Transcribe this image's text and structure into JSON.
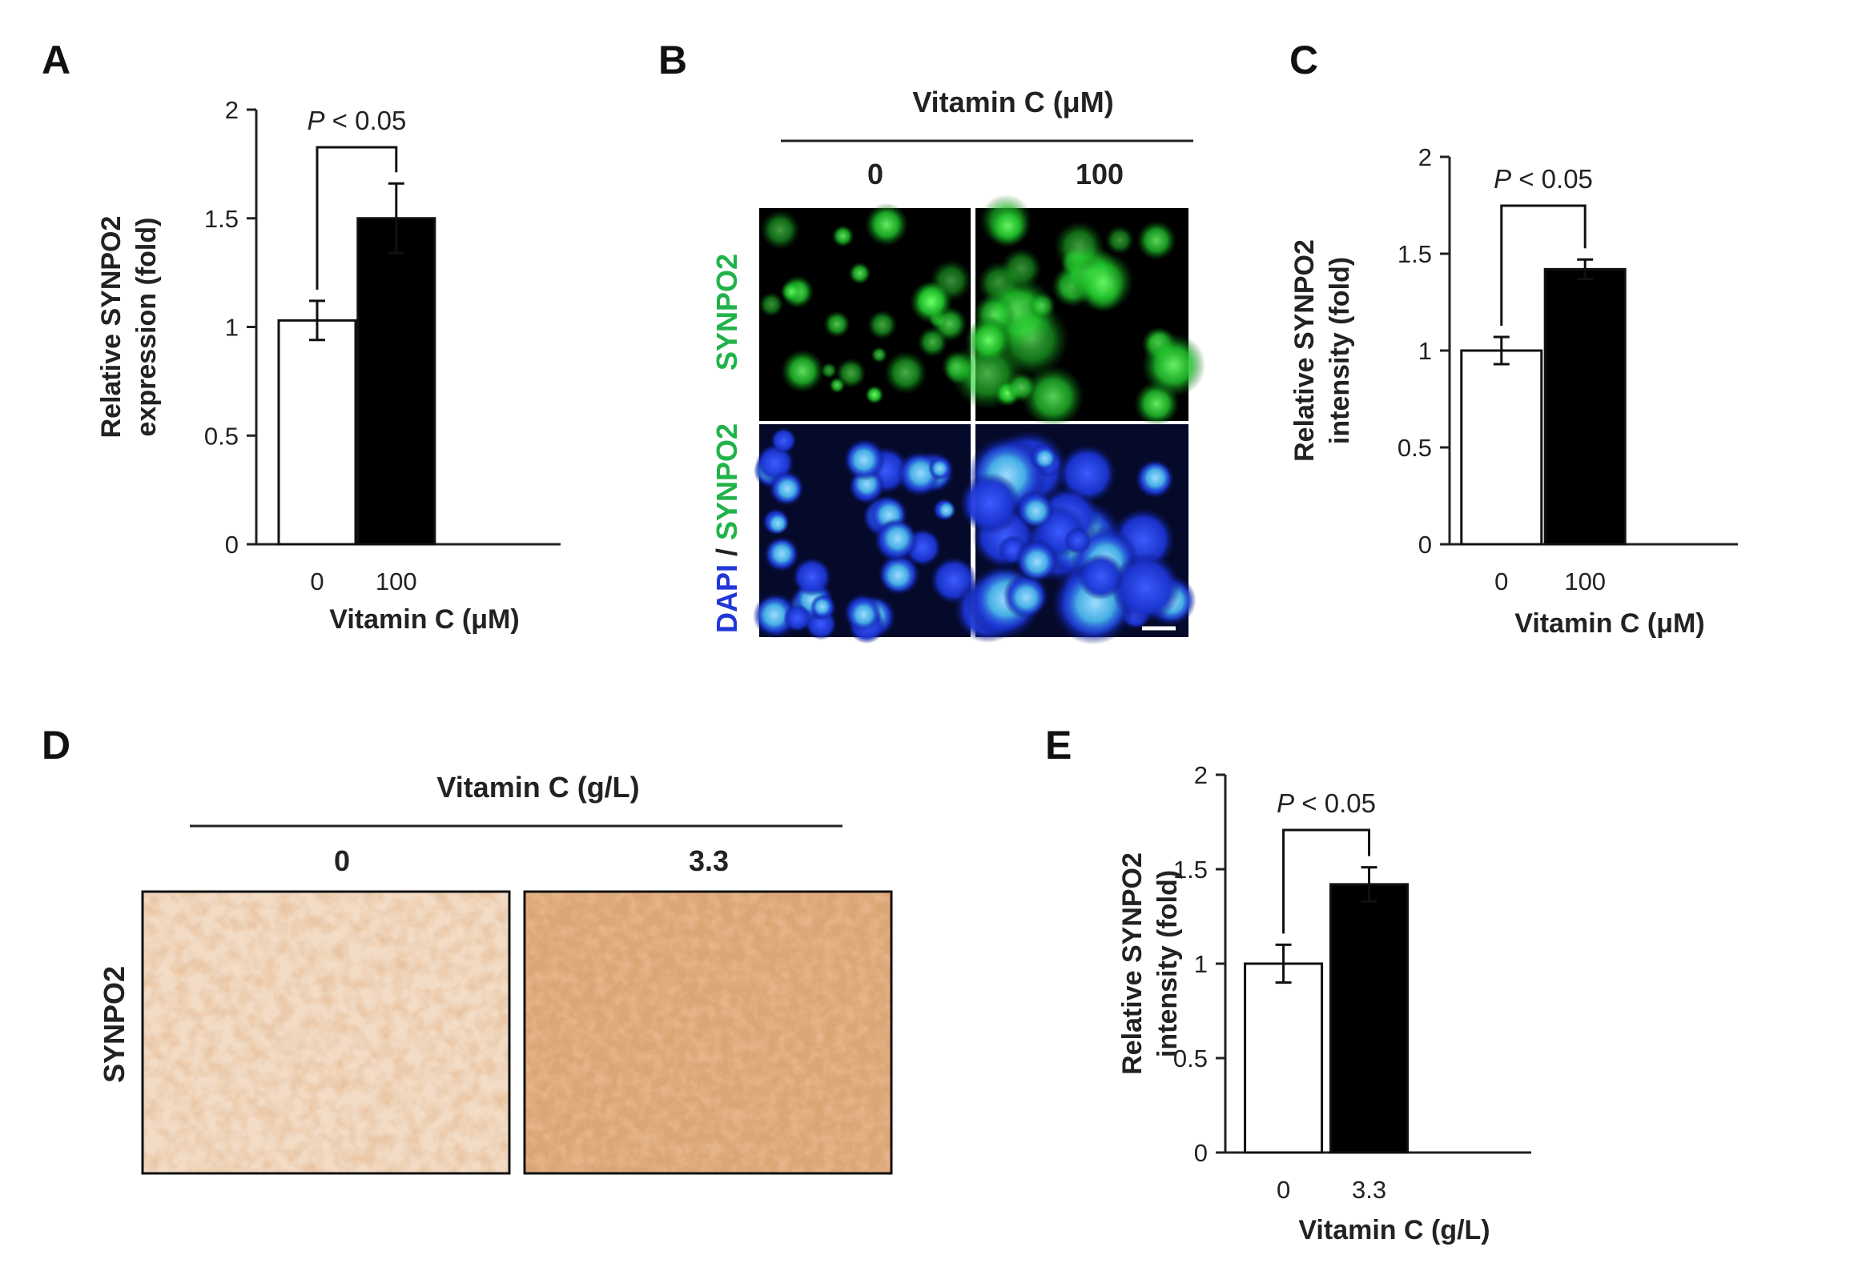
{
  "panels": {
    "A": "A",
    "B": "B",
    "C": "C",
    "D": "D",
    "E": "E"
  },
  "chart_data": [
    {
      "id": "A",
      "type": "bar",
      "categories": [
        "0",
        "100"
      ],
      "values": [
        1.03,
        1.5
      ],
      "errors": [
        0.09,
        0.16
      ],
      "bar_colors": [
        "#ffffff",
        "#000000"
      ],
      "ylabel_lines": [
        "Relative SYNPO2",
        "expression (fold)"
      ],
      "xlabel": "Vitamin C (μM)",
      "ylim": [
        0,
        2
      ],
      "yticks": [
        "0",
        "0.5",
        "1",
        "1.5",
        "2"
      ],
      "annotation_italic": "P",
      "annotation_rest": " < 0.05",
      "grid": false
    },
    {
      "id": "C",
      "type": "bar",
      "categories": [
        "0",
        "100"
      ],
      "values": [
        1.0,
        1.42
      ],
      "errors": [
        0.07,
        0.05
      ],
      "bar_colors": [
        "#ffffff",
        "#000000"
      ],
      "ylabel_lines": [
        "Relative SYNPO2",
        "intensity (fold)"
      ],
      "xlabel": "Vitamin C (μM)",
      "ylim": [
        0,
        2
      ],
      "yticks": [
        "0",
        "0.5",
        "1",
        "1.5",
        "2"
      ],
      "annotation_italic": "P",
      "annotation_rest": " < 0.05",
      "grid": false
    },
    {
      "id": "E",
      "type": "bar",
      "categories": [
        "0",
        "3.3"
      ],
      "values": [
        1.0,
        1.42
      ],
      "errors": [
        0.1,
        0.09
      ],
      "bar_colors": [
        "#ffffff",
        "#000000"
      ],
      "ylabel_lines": [
        "Relative SYNPO2",
        "intensity (fold)"
      ],
      "xlabel": "Vitamin C (g/L)",
      "ylim": [
        0,
        2
      ],
      "yticks": [
        "0",
        "0.5",
        "1",
        "1.5",
        "2"
      ],
      "annotation_italic": "P",
      "annotation_rest": " < 0.05",
      "grid": false
    }
  ],
  "panel_b": {
    "header": "Vitamin C (μM)",
    "columns": [
      "0",
      "100"
    ],
    "row1_label": "SYNPO2",
    "row2_label_dapi": "DAPI",
    "row2_label_sep": " / ",
    "row2_label_synpo2": "SYNPO2",
    "green": "#22c02a",
    "blue": "#1f3ad6",
    "cyan": "#5fd6e6"
  },
  "panel_d": {
    "header": "Vitamin C (g/L)",
    "columns": [
      "0",
      "3.3"
    ],
    "row_label": "SYNPO2",
    "stain_light": "#f0d2b4",
    "stain_dark": "#cf8650"
  }
}
